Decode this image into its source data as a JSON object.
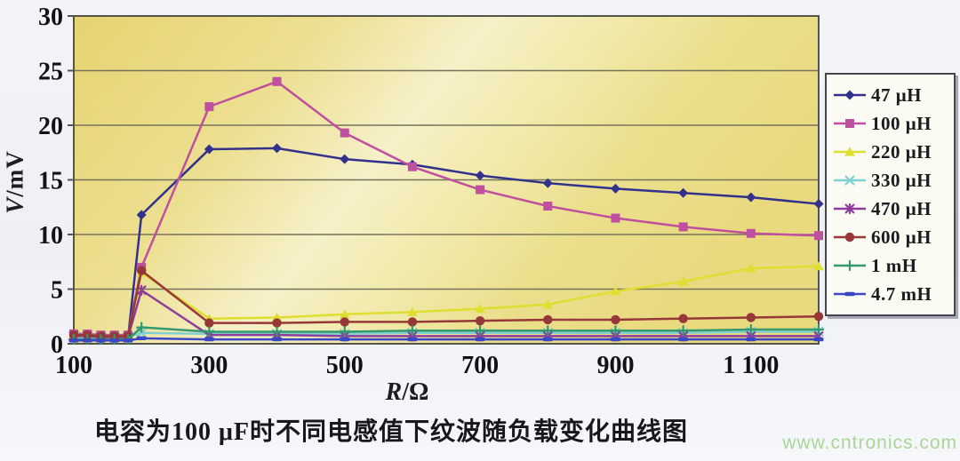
{
  "page": {
    "caption": "电容为100 μF时不同电感值下纹波随负载变化曲线图",
    "watermark": "www.cntronics.com",
    "watermark_color": "#a8d698"
  },
  "chart_data": {
    "type": "line",
    "title": "电容为100 μF时不同电感值下纹波随负载变化曲线图",
    "xlabel": "R/Ω",
    "ylabel": "V/mV",
    "xlabel_variable": "R",
    "xlabel_unit": "/Ω",
    "ylabel_variable": "V",
    "ylabel_unit": "/mV",
    "xlim": [
      100,
      1200
    ],
    "ylim": [
      0,
      30
    ],
    "grid": "horizontal",
    "legend_position": "right",
    "y_ticks": [
      0,
      5,
      10,
      15,
      20,
      25,
      30
    ],
    "x_tick_values": [
      100,
      300,
      500,
      700,
      900,
      1100
    ],
    "x_tick_labels": [
      "100",
      "300",
      "500",
      "700",
      "900",
      "1 100"
    ],
    "x": [
      100,
      120,
      140,
      160,
      180,
      200,
      300,
      400,
      500,
      600,
      700,
      800,
      900,
      1000,
      1100,
      1200
    ],
    "series": [
      {
        "name": "47 μH",
        "color": "#32328c",
        "marker": "diamond",
        "values": [
          0.5,
          0.5,
          0.4,
          0.4,
          0.5,
          11.8,
          17.8,
          17.9,
          16.9,
          16.4,
          15.4,
          14.7,
          14.2,
          13.8,
          13.4,
          12.8
        ]
      },
      {
        "name": "100 μH",
        "color": "#bf4f9f",
        "marker": "square",
        "values": [
          0.9,
          0.9,
          0.8,
          0.8,
          0.8,
          7.0,
          21.7,
          24.0,
          19.3,
          16.2,
          14.1,
          12.6,
          11.5,
          10.7,
          10.1,
          9.9
        ]
      },
      {
        "name": "220 μH",
        "color": "#dede30",
        "marker": "triangle",
        "values": [
          0.8,
          0.8,
          0.7,
          0.7,
          0.7,
          6.5,
          2.3,
          2.4,
          2.7,
          2.9,
          3.2,
          3.6,
          4.8,
          5.7,
          6.9,
          7.1
        ]
      },
      {
        "name": "330 μH",
        "color": "#7fd0d0",
        "marker": "x",
        "values": [
          0.6,
          0.6,
          0.6,
          0.6,
          0.6,
          1.0,
          0.9,
          0.9,
          0.9,
          1.0,
          1.0,
          1.0,
          1.0,
          1.0,
          1.1,
          1.1
        ]
      },
      {
        "name": "470 μH",
        "color": "#8f3d9d",
        "marker": "asterisk",
        "values": [
          0.7,
          0.7,
          0.6,
          0.6,
          0.6,
          4.9,
          0.8,
          0.8,
          0.7,
          0.7,
          0.7,
          0.7,
          0.7,
          0.7,
          0.7,
          0.7
        ]
      },
      {
        "name": "600 μH",
        "color": "#963838",
        "marker": "circle",
        "values": [
          0.8,
          0.8,
          0.7,
          0.7,
          0.7,
          6.7,
          1.9,
          1.9,
          2.0,
          2.0,
          2.1,
          2.2,
          2.2,
          2.3,
          2.4,
          2.5
        ]
      },
      {
        "name": "1 mH",
        "color": "#35996b",
        "marker": "plus",
        "values": [
          0.4,
          0.4,
          0.4,
          0.4,
          0.4,
          1.5,
          1.1,
          1.1,
          1.1,
          1.2,
          1.2,
          1.2,
          1.2,
          1.2,
          1.3,
          1.3
        ]
      },
      {
        "name": "4.7 mH",
        "color": "#3a46c4",
        "marker": "dash",
        "values": [
          0.3,
          0.3,
          0.3,
          0.3,
          0.3,
          0.5,
          0.4,
          0.4,
          0.4,
          0.4,
          0.4,
          0.4,
          0.4,
          0.4,
          0.4,
          0.4
        ]
      }
    ]
  }
}
